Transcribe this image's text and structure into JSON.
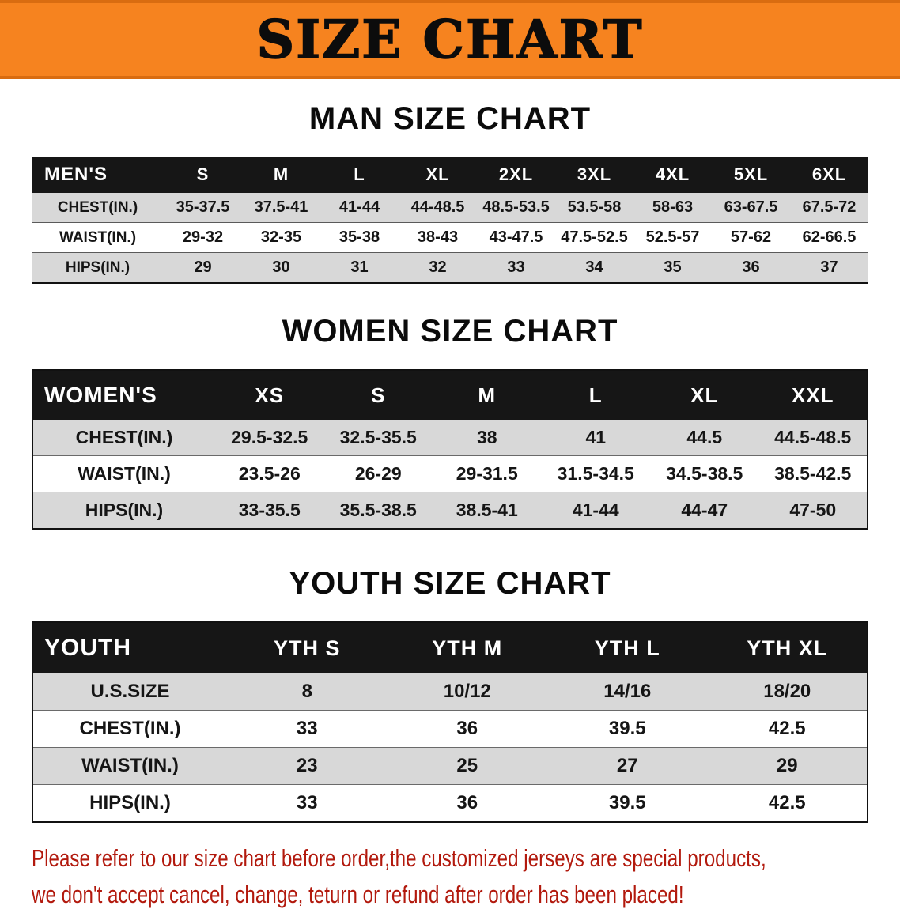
{
  "banner": {
    "title": "SIZE CHART"
  },
  "men": {
    "heading": "MAN SIZE CHART",
    "header": [
      "MEN'S",
      "S",
      "M",
      "L",
      "XL",
      "2XL",
      "3XL",
      "4XL",
      "5XL",
      "6XL"
    ],
    "rows": [
      [
        "CHEST(IN.)",
        "35-37.5",
        "37.5-41",
        "41-44",
        "44-48.5",
        "48.5-53.5",
        "53.5-58",
        "58-63",
        "63-67.5",
        "67.5-72"
      ],
      [
        "WAIST(IN.)",
        "29-32",
        "32-35",
        "35-38",
        "38-43",
        "43-47.5",
        "47.5-52.5",
        "52.5-57",
        "57-62",
        "62-66.5"
      ],
      [
        "HIPS(IN.)",
        "29",
        "30",
        "31",
        "32",
        "33",
        "34",
        "35",
        "36",
        "37"
      ]
    ]
  },
  "women": {
    "heading": "WOMEN SIZE CHART",
    "header": [
      "WOMEN'S",
      "XS",
      "S",
      "M",
      "L",
      "XL",
      "XXL"
    ],
    "rows": [
      [
        "CHEST(IN.)",
        "29.5-32.5",
        "32.5-35.5",
        "38",
        "41",
        "44.5",
        "44.5-48.5"
      ],
      [
        "WAIST(IN.)",
        "23.5-26",
        "26-29",
        "29-31.5",
        "31.5-34.5",
        "34.5-38.5",
        "38.5-42.5"
      ],
      [
        "HIPS(IN.)",
        "33-35.5",
        "35.5-38.5",
        "38.5-41",
        "41-44",
        "44-47",
        "47-50"
      ]
    ]
  },
  "youth": {
    "heading": "YOUTH SIZE CHART",
    "header": [
      "YOUTH",
      "YTH S",
      "YTH M",
      "YTH L",
      "YTH XL"
    ],
    "rows": [
      [
        "U.S.SIZE",
        "8",
        "10/12",
        "14/16",
        "18/20"
      ],
      [
        "CHEST(IN.)",
        "33",
        "36",
        "39.5",
        "42.5"
      ],
      [
        "WAIST(IN.)",
        "23",
        "25",
        "27",
        "29"
      ],
      [
        "HIPS(IN.)",
        "33",
        "36",
        "39.5",
        "42.5"
      ]
    ]
  },
  "disclaimer": {
    "line1": "Please refer to our size chart before order,the customized jerseys are special products,",
    "line2": "we don't accept cancel, change, teturn or refund after order has been placed!"
  },
  "colors": {
    "banner_orange": "#f6831f",
    "banner_edge": "#d96c10",
    "header_black": "#161616",
    "row_gray": "#d8d8d8",
    "disclaimer_red": "#b2190d"
  }
}
